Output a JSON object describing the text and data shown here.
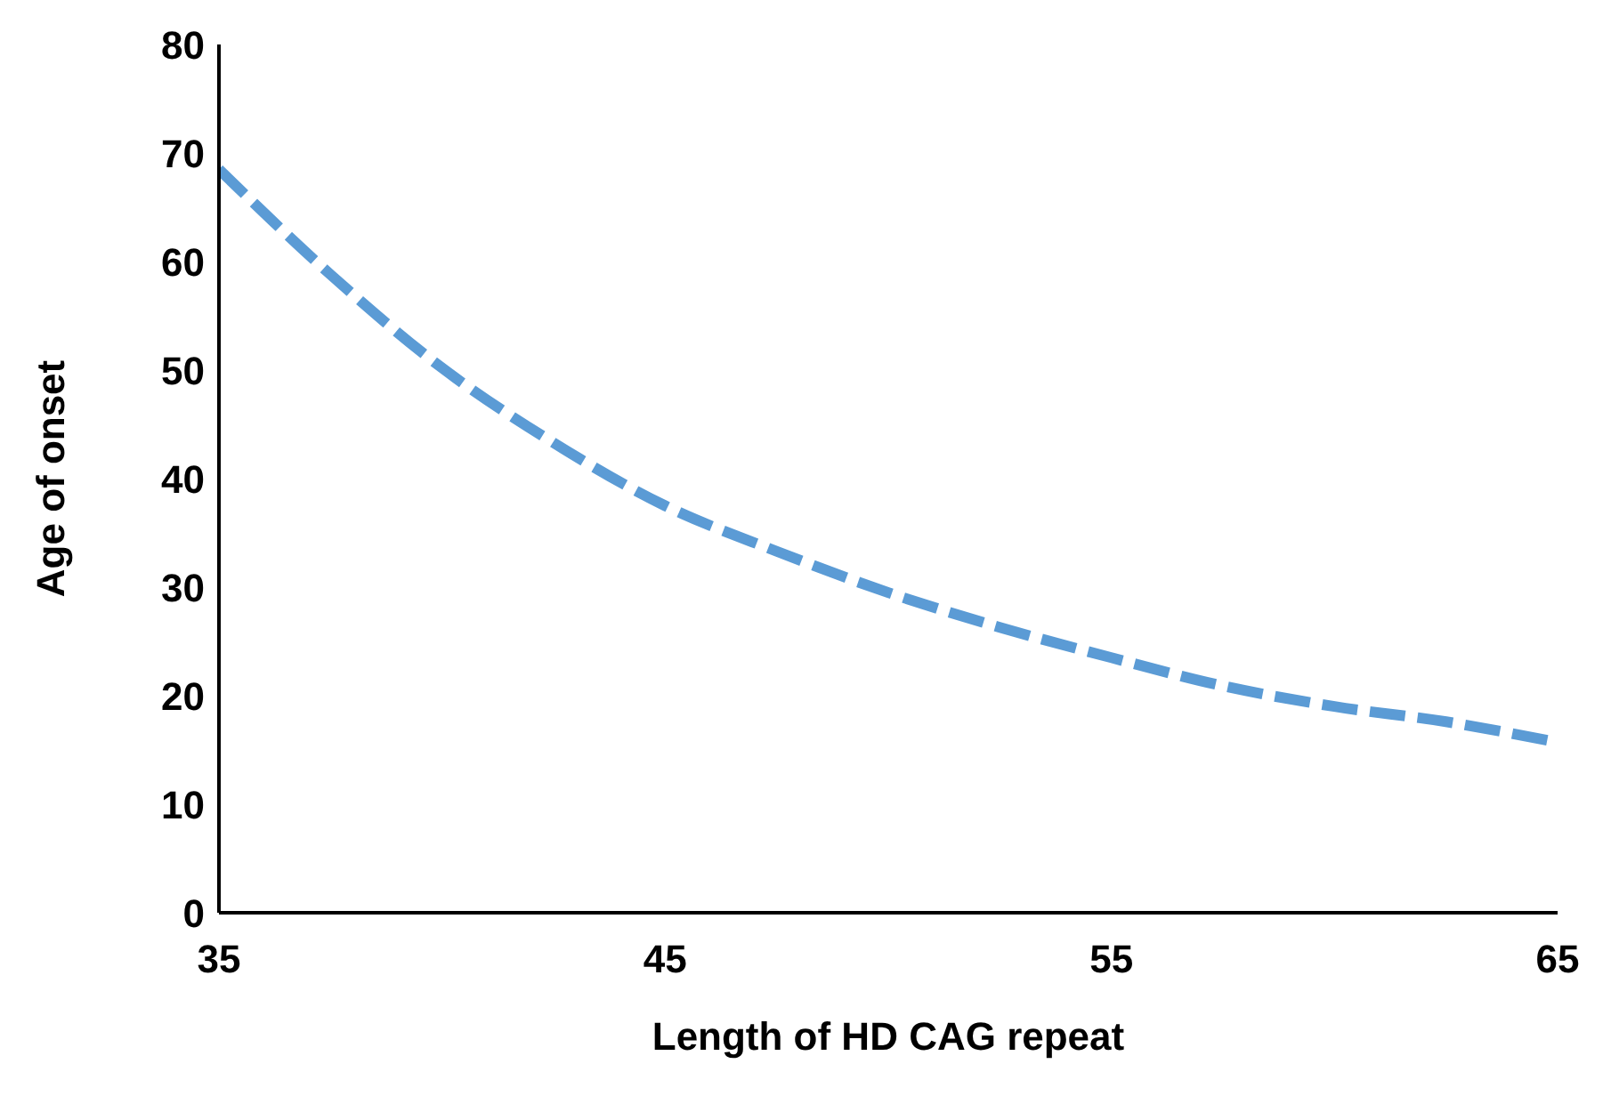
{
  "chart_data": {
    "type": "line",
    "xlabel": "Length of HD CAG repeat",
    "ylabel": "Age of onset",
    "x": [
      35,
      37.5,
      40,
      42.5,
      45,
      47.5,
      50,
      52.5,
      55,
      57.5,
      60,
      62.5,
      65
    ],
    "series": [
      {
        "color": "#5b9bd5",
        "values": [
          68.5,
          58.8,
          50.2,
          43.3,
          37.5,
          33.3,
          29.5,
          26.3,
          23.5,
          20.9,
          19,
          17.6,
          15.7
        ]
      }
    ],
    "xlim": [
      35,
      65
    ],
    "xticks": [
      35,
      45,
      55,
      65
    ],
    "ylim": [
      0,
      80
    ],
    "yticks": [
      0,
      10,
      20,
      30,
      40,
      50,
      60,
      70,
      80
    ],
    "grid": false,
    "legend": false,
    "marker": "none",
    "line_style": "dashed"
  }
}
